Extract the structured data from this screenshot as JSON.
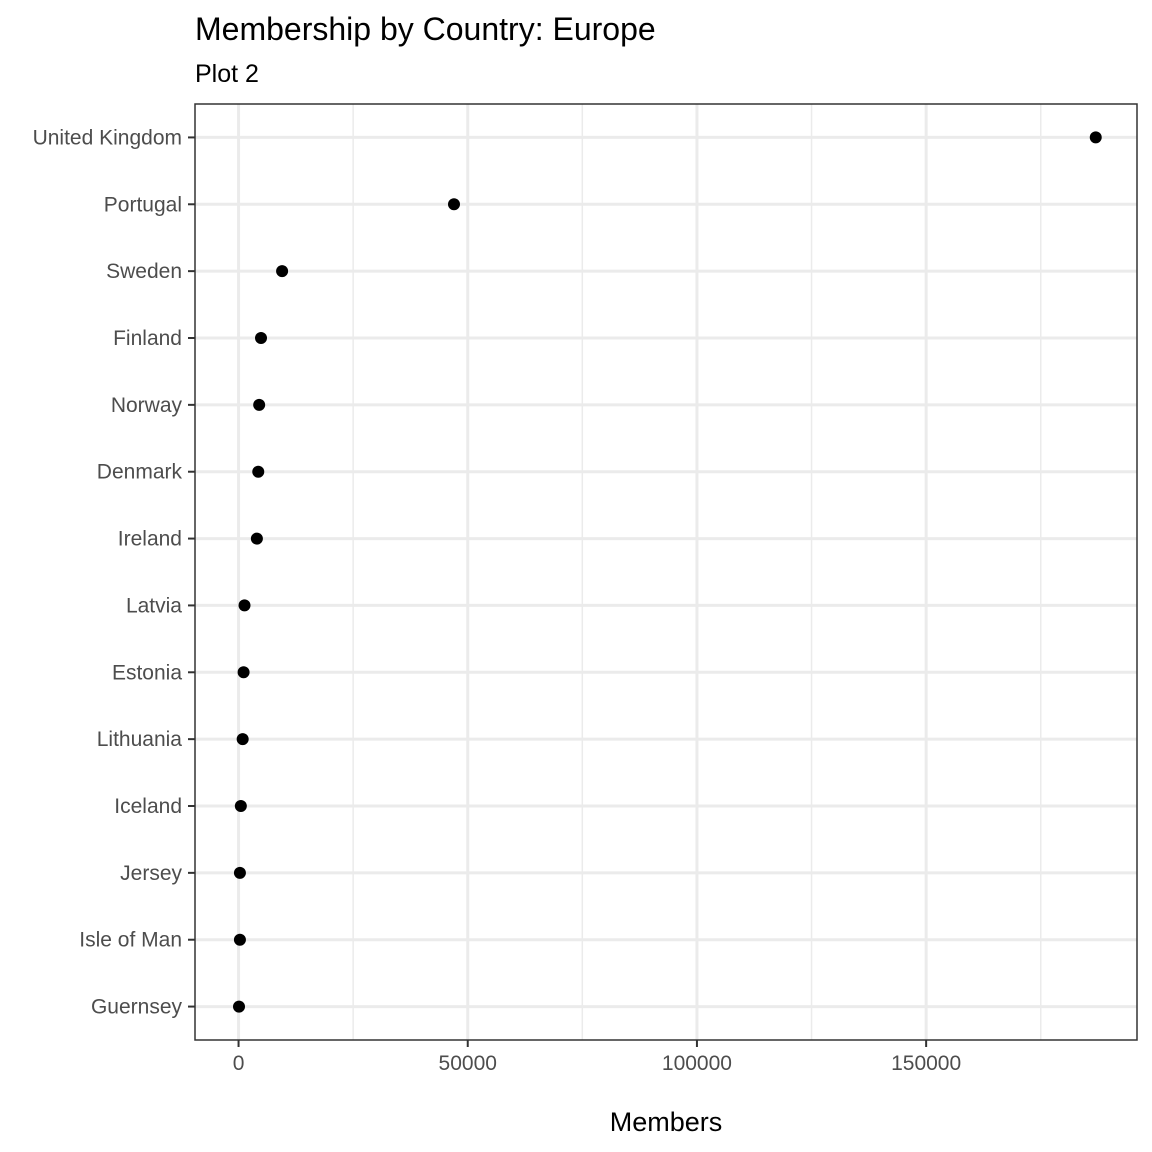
{
  "chart_data": {
    "type": "scatter",
    "title": "Membership by Country: Europe",
    "subtitle": "Plot 2",
    "xlabel": "Members",
    "ylabel": "",
    "xlim": [
      -9500,
      196000
    ],
    "x_ticks": [
      0,
      50000,
      100000,
      150000
    ],
    "x_tick_labels": [
      "0",
      "50000",
      "100000",
      "150000"
    ],
    "x_minor_ticks": [
      25000,
      75000,
      125000,
      175000
    ],
    "grid": true,
    "legend": "none",
    "point_color": "#000000",
    "categories": [
      "United Kingdom",
      "Portugal",
      "Sweden",
      "Finland",
      "Norway",
      "Denmark",
      "Ireland",
      "Latvia",
      "Estonia",
      "Lithuania",
      "Iceland",
      "Jersey",
      "Isle of Man",
      "Guernsey"
    ],
    "values": [
      187000,
      47000,
      9500,
      4900,
      4500,
      4300,
      4000,
      1300,
      1100,
      900,
      500,
      300,
      300,
      100
    ]
  }
}
